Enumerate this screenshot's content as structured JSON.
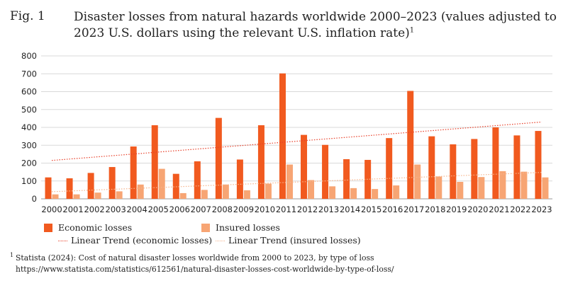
{
  "figure": {
    "number": "Fig. 1",
    "title": "Disaster losses from natural hazards worldwide 2000–2023 (values adjusted to 2023 U.S. dollars using the relevant U.S. inflation rate)",
    "footnote_marker": "1"
  },
  "legend": {
    "economic": "Economic losses",
    "insured": "Insured losses",
    "trend_economic": "Linear Trend (economic losses)",
    "trend_insured": "Linear Trend (insured losses)"
  },
  "footnote": {
    "marker": "1",
    "text": "Statista (2024): Cost of natural disaster losses worldwide from 2000 to 2023, by type of loss https://www.statista.com/statistics/612561/natural-disaster-losses-cost-worldwide-by-type-of-loss/"
  },
  "colors": {
    "economic": "#f15a1f",
    "insured": "#f7a574",
    "trend_economic": "#e8402a",
    "trend_insured": "#f6b48c",
    "grid": "#d9d9d9"
  },
  "chart_data": {
    "type": "bar",
    "categories": [
      "2000",
      "2001",
      "2002",
      "2003",
      "2004",
      "2005",
      "2006",
      "2007",
      "2008",
      "2009",
      "2010",
      "2011",
      "2012",
      "2013",
      "2014",
      "2015",
      "2016",
      "2017",
      "2018",
      "2019",
      "2020",
      "2021",
      "2022",
      "2023"
    ],
    "series": [
      {
        "name": "Economic losses",
        "values": [
          120,
          115,
          145,
          178,
          293,
          412,
          140,
          210,
          453,
          220,
          412,
          702,
          358,
          302,
          222,
          218,
          340,
          604,
          350,
          305,
          335,
          400,
          355,
          380
        ]
      },
      {
        "name": "Insured losses",
        "values": [
          25,
          25,
          35,
          42,
          80,
          168,
          32,
          50,
          80,
          48,
          85,
          192,
          105,
          70,
          60,
          55,
          75,
          192,
          125,
          95,
          122,
          155,
          152,
          120
        ]
      }
    ],
    "trend_lines": [
      {
        "name": "Linear Trend (economic losses)",
        "start": 215,
        "end": 430
      },
      {
        "name": "Linear Trend (insured losses)",
        "start": 40,
        "end": 148
      }
    ],
    "yticks": [
      "0",
      "100",
      "200",
      "300",
      "400",
      "500",
      "600",
      "700",
      "800"
    ],
    "ylim": [
      0,
      800
    ],
    "grid": true,
    "legend_position": "bottom-left"
  }
}
